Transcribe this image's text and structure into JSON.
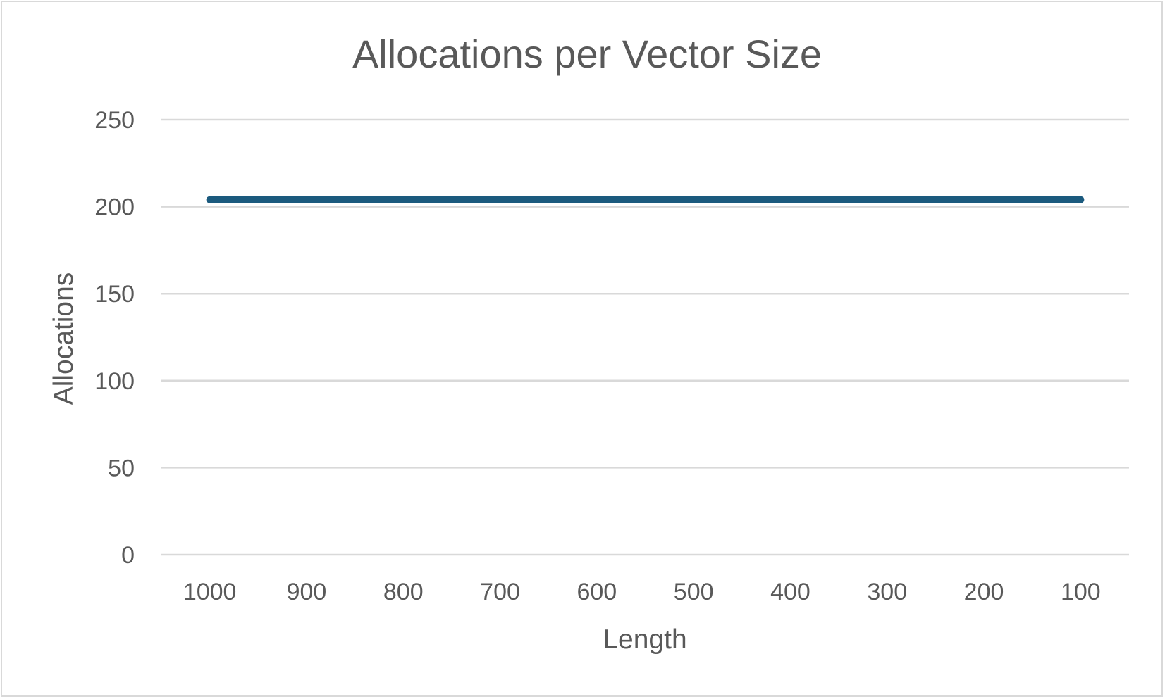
{
  "chart_data": {
    "type": "line",
    "title": "Allocations per Vector Size",
    "xlabel": "Length",
    "ylabel": "Allocations",
    "categories": [
      "1000",
      "900",
      "800",
      "700",
      "600",
      "500",
      "400",
      "300",
      "200",
      "100"
    ],
    "series": [
      {
        "values": [
          204,
          204,
          204,
          204,
          204,
          204,
          204,
          204,
          204,
          204
        ],
        "color": "#1b5a7e"
      }
    ],
    "ylim": [
      0,
      250
    ],
    "yticks": [
      0,
      50,
      100,
      150,
      200,
      250
    ],
    "grid": true,
    "legend": "none"
  }
}
